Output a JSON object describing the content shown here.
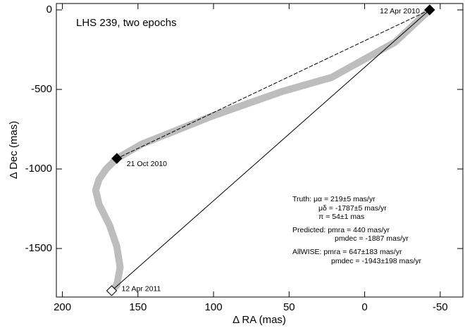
{
  "chart_data": {
    "type": "line",
    "title": "LHS 239, two epochs",
    "x_label": "Δ RA (mas)",
    "y_label": "Δ Dec (mas)",
    "xlim": [
      204,
      -65
    ],
    "ylim": [
      -1805,
      40
    ],
    "xticks": [
      200,
      150,
      100,
      50,
      0,
      -50
    ],
    "yticks": [
      0,
      -500,
      -1000,
      -1500
    ],
    "series": [
      {
        "color": "#bdbdbd",
        "style": "thick",
        "x": [
          -43,
          -20,
          22,
          54.6,
          101,
          124.5,
          147.8,
          164,
          171,
          175.8,
          178,
          175.8,
          168.8,
          164,
          161.8,
          164,
          167.4
        ],
        "values": [
          0,
          -204,
          -425,
          -513,
          -668,
          -757,
          -845,
          -934,
          -1000,
          -1066,
          -1133,
          -1221,
          -1354,
          -1487,
          -1619,
          -1730,
          -1765
        ]
      },
      {
        "color": "#000000",
        "style": "dashed",
        "x": [
          -43,
          164
        ],
        "values": [
          0,
          -934
        ]
      },
      {
        "color": "#000000",
        "style": "solid",
        "x": [
          -43,
          167.4
        ],
        "values": [
          0,
          -1765
        ]
      }
    ],
    "points": {
      "x": [
        -43,
        164,
        167.4
      ],
      "values": [
        0,
        -934,
        -1765
      ],
      "labels": [
        "12 Apr 2010",
        "21 Oct 2010",
        "12 Apr 2011"
      ],
      "filled": [
        true,
        true,
        false
      ]
    },
    "annotations": [
      "Truth: μα = 219±5 mas/yr",
      "μδ = -1787±5 mas/yr",
      "π = 54±1 mas",
      "Predicted: pmra = 440 mas/yr",
      "pmdec = -1887 mas/yr",
      "AllWISE: pmra = 647±183 mas/yr",
      "pmdec = -1943±198 mas/yr"
    ]
  }
}
